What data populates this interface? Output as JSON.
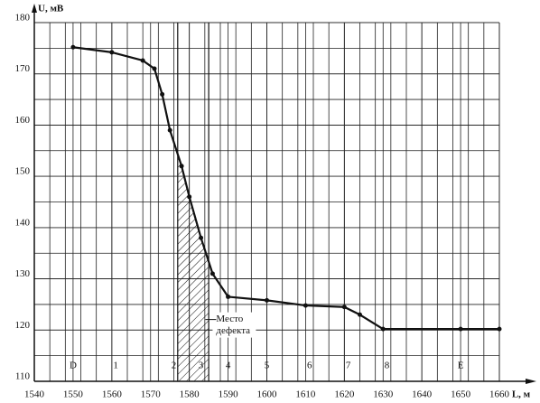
{
  "chart_data": {
    "type": "line",
    "ylabel": "U, мВ",
    "xlabel": "L, м",
    "xlim": [
      1540,
      1660
    ],
    "xticks": [
      1540,
      1550,
      1560,
      1570,
      1580,
      1590,
      1600,
      1610,
      1620,
      1630,
      1640,
      1650,
      1660
    ],
    "ylim": [
      110,
      180
    ],
    "yticks": [
      110,
      120,
      130,
      140,
      150,
      160,
      170,
      180
    ],
    "grid": true,
    "minor_grid": {
      "x": 4,
      "y": 5
    },
    "series": [
      {
        "color": "#111111",
        "x": [
          1550,
          1560,
          1568,
          1571,
          1573,
          1575,
          1578,
          1580,
          1583,
          1586,
          1590,
          1600,
          1610,
          1620,
          1624,
          1630,
          1650,
          1660
        ],
        "values": [
          175.2,
          174.2,
          172.6,
          171,
          166,
          159,
          152,
          146,
          138,
          131,
          126.5,
          125.8,
          124.8,
          124.5,
          123,
          120.2,
          120.2,
          120.2
        ]
      }
    ],
    "defect_zone": [
      1577,
      1585
    ],
    "annotation": {
      "text": [
        "Место",
        "дефекта"
      ],
      "x": 1586,
      "y": 121
    },
    "section_labels": [
      {
        "x": 1550,
        "label": "D"
      },
      {
        "x": 1561,
        "label": "1"
      },
      {
        "x": 1576,
        "label": "2"
      },
      {
        "x": 1583,
        "label": "3"
      },
      {
        "x": 1590,
        "label": "4"
      },
      {
        "x": 1600,
        "label": "5"
      },
      {
        "x": 1611,
        "label": "6"
      },
      {
        "x": 1621,
        "label": "7"
      },
      {
        "x": 1631,
        "label": "8"
      },
      {
        "x": 1650,
        "label": "E"
      }
    ]
  }
}
